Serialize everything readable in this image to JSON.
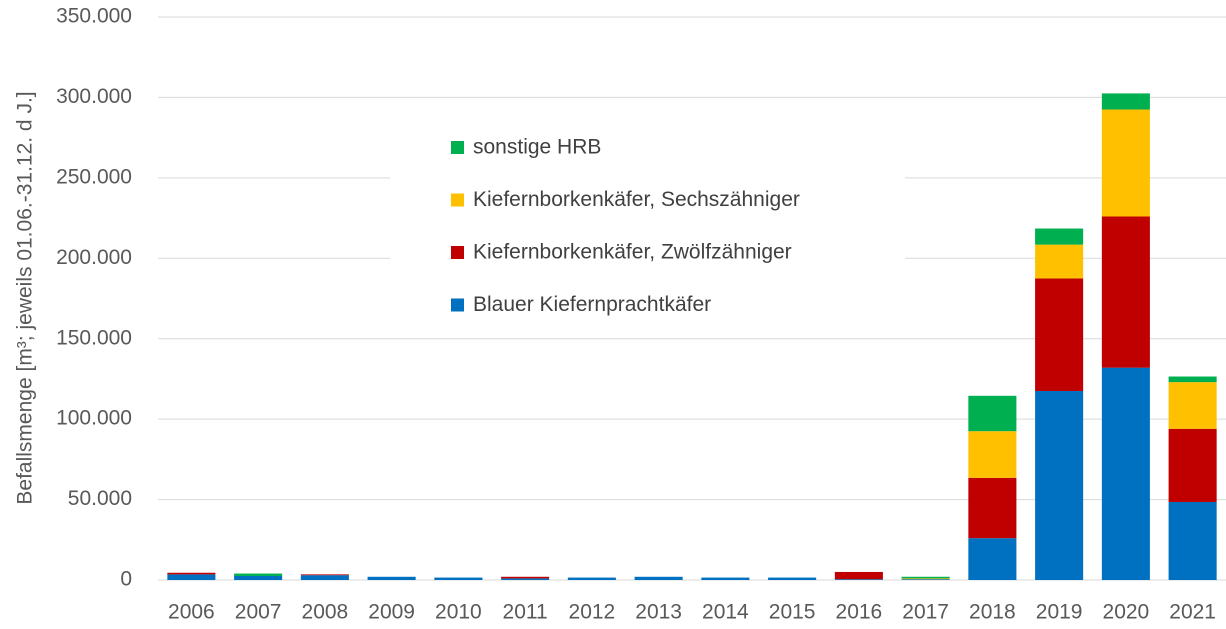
{
  "chart_data": {
    "type": "stacked_bar",
    "y_label": "Befallsmenge [m³; jeweils 01.06.-31.12. d J.]",
    "categories": [
      "2006",
      "2007",
      "2008",
      "2009",
      "2010",
      "2011",
      "2012",
      "2013",
      "2014",
      "2015",
      "2016",
      "2017",
      "2018",
      "2019",
      "2020",
      "2021"
    ],
    "series": [
      {
        "name": "Blauer Kiefernprachtkäfer",
        "color": "#0070c0",
        "values": [
          3500,
          2500,
          3000,
          2000,
          1500,
          1000,
          1500,
          2000,
          1500,
          1500,
          500,
          500,
          26000,
          117500,
          132000,
          48500
        ]
      },
      {
        "name": "Kiefernborkenkäfer, Zwölfzähniger",
        "color": "#c00000",
        "values": [
          1000,
          0,
          500,
          0,
          0,
          1000,
          0,
          0,
          0,
          0,
          4500,
          0,
          37500,
          70000,
          94000,
          45500
        ]
      },
      {
        "name": "Kiefernborkenkäfer, Sechszähniger",
        "color": "#ffc000",
        "values": [
          0,
          0,
          0,
          0,
          0,
          0,
          0,
          0,
          0,
          0,
          0,
          500,
          29000,
          21000,
          66500,
          29000
        ]
      },
      {
        "name": "sonstige HRB",
        "color": "#00b050",
        "values": [
          0,
          1500,
          0,
          0,
          0,
          0,
          0,
          0,
          0,
          0,
          0,
          1000,
          22000,
          10000,
          10000,
          3500
        ]
      }
    ],
    "ylim": [
      0,
      350000
    ],
    "yticks": [
      0,
      {
        "value": 50000,
        "label": "50.000"
      },
      {
        "value": 100000,
        "label": "100.000"
      },
      {
        "value": 150000,
        "label": "150.000"
      },
      {
        "value": 200000,
        "label": "200.000"
      },
      {
        "value": 250000,
        "label": "250.000"
      },
      {
        "value": 300000,
        "label": "300.000"
      },
      {
        "value": 350000,
        "label": "350.000"
      }
    ],
    "grid": true
  }
}
